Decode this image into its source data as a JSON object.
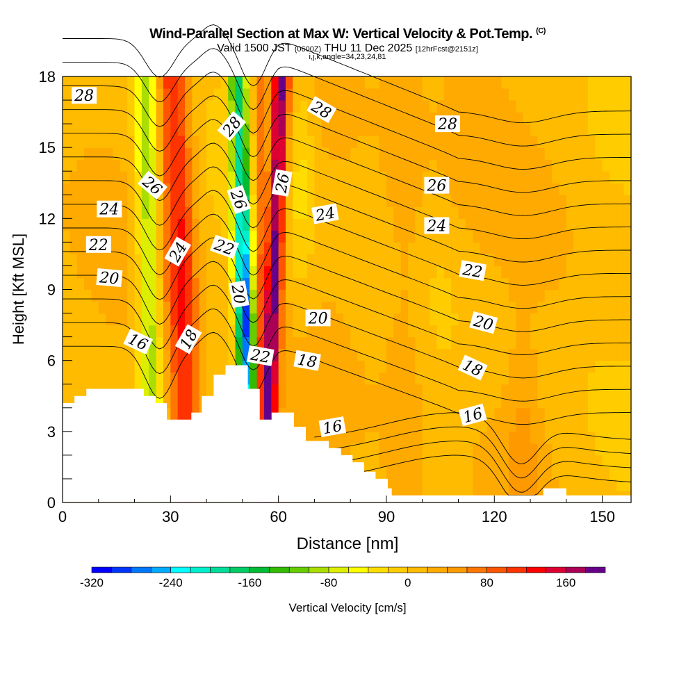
{
  "chart_data": {
    "type": "heatmap",
    "title": "Wind-Parallel Section at Max W: Vertical Velocity & Pot.Temp.",
    "title_mark": "(C)",
    "subtitle_main": "Valid 1500 JST",
    "subtitle_utc": "(0600Z)",
    "subtitle_date": "THU 11 Dec 2025",
    "subtitle_fcst": "[12hrFcst@2151z]",
    "subtitle2": "i,j,k,angle=34,23,24,81",
    "xlabel": "Distance [nm]",
    "ylabel": "Height [Kft MSL]",
    "xlim": [
      0,
      158
    ],
    "ylim": [
      0,
      18
    ],
    "xticks": [
      "0",
      "30",
      "60",
      "90",
      "120",
      "150"
    ],
    "yticks": [
      "0",
      "3",
      "6",
      "9",
      "12",
      "15",
      "18"
    ],
    "colorbar": {
      "label": "Vertical Velocity [cm/s]",
      "min": -320,
      "max": 200,
      "step": 20,
      "tick_labels": [
        "-320",
        "-240",
        "-160",
        "-80",
        "0",
        "80",
        "160"
      ],
      "colors": [
        "#0000ff",
        "#0033ff",
        "#0077ff",
        "#00aaff",
        "#00ffff",
        "#00eecc",
        "#00dd99",
        "#00cc66",
        "#00bb33",
        "#33bb00",
        "#66cc00",
        "#aadd00",
        "#ddee00",
        "#ffff00",
        "#ffdd00",
        "#ffcc00",
        "#ffbb00",
        "#ffaa00",
        "#ff9900",
        "#ff7700",
        "#ff5500",
        "#ff3300",
        "#ff0000",
        "#dd0033",
        "#aa0055",
        "#660088"
      ]
    },
    "theta_levels": [
      16,
      17,
      18,
      19,
      20,
      21,
      22,
      23,
      24,
      25,
      26,
      27,
      28,
      29
    ],
    "theta_labels": [
      {
        "text": "28",
        "x": 6,
        "z": 17.2,
        "rot": 0
      },
      {
        "text": "24",
        "x": 13,
        "z": 12.4,
        "rot": 0
      },
      {
        "text": "22",
        "x": 10,
        "z": 10.9,
        "rot": 0
      },
      {
        "text": "20",
        "x": 13,
        "z": 9.5,
        "rot": 5
      },
      {
        "text": "16",
        "x": 21,
        "z": 6.8,
        "rot": 25
      },
      {
        "text": "26",
        "x": 25,
        "z": 13.4,
        "rot": 40
      },
      {
        "text": "24",
        "x": 32,
        "z": 10.6,
        "rot": -60
      },
      {
        "text": "18",
        "x": 35,
        "z": 6.9,
        "rot": -60
      },
      {
        "text": "28",
        "x": 47,
        "z": 15.9,
        "rot": -50
      },
      {
        "text": "26",
        "x": 49,
        "z": 12.8,
        "rot": 70
      },
      {
        "text": "22",
        "x": 45,
        "z": 10.8,
        "rot": 20
      },
      {
        "text": "20",
        "x": 49,
        "z": 8.8,
        "rot": 80
      },
      {
        "text": "22",
        "x": 55,
        "z": 6.2,
        "rot": 10
      },
      {
        "text": "26",
        "x": 61,
        "z": 13.5,
        "rot": -80
      },
      {
        "text": "28",
        "x": 72,
        "z": 16.6,
        "rot": 30
      },
      {
        "text": "24",
        "x": 73,
        "z": 12.2,
        "rot": -10
      },
      {
        "text": "20",
        "x": 71,
        "z": 7.8,
        "rot": 0
      },
      {
        "text": "18",
        "x": 68,
        "z": 6.0,
        "rot": 10
      },
      {
        "text": "16",
        "x": 75,
        "z": 3.2,
        "rot": -10
      },
      {
        "text": "28",
        "x": 107,
        "z": 16.0,
        "rot": 0
      },
      {
        "text": "26",
        "x": 104,
        "z": 13.4,
        "rot": 0
      },
      {
        "text": "24",
        "x": 104,
        "z": 11.7,
        "rot": 0
      },
      {
        "text": "22",
        "x": 114,
        "z": 9.8,
        "rot": 10
      },
      {
        "text": "20",
        "x": 117,
        "z": 7.6,
        "rot": 15
      },
      {
        "text": "18",
        "x": 114,
        "z": 5.7,
        "rot": 25
      },
      {
        "text": "16",
        "x": 114,
        "z": 3.7,
        "rot": -15
      }
    ],
    "terrain": [
      [
        0,
        4.2
      ],
      [
        3.3,
        4.2
      ],
      [
        3.3,
        4.5
      ],
      [
        6.6,
        4.5
      ],
      [
        6.6,
        4.8
      ],
      [
        22.6,
        4.8
      ],
      [
        22.6,
        4.5
      ],
      [
        25.9,
        4.5
      ],
      [
        25.9,
        4.2
      ],
      [
        29,
        4.2
      ],
      [
        29,
        3.5
      ],
      [
        35.8,
        3.5
      ],
      [
        35.8,
        3.8
      ],
      [
        38.7,
        3.8
      ],
      [
        38.7,
        4.5
      ],
      [
        42,
        4.5
      ],
      [
        42,
        5.4
      ],
      [
        45.3,
        5.4
      ],
      [
        45.3,
        5.8
      ],
      [
        51.5,
        5.8
      ],
      [
        51.5,
        4.8
      ],
      [
        54.8,
        4.8
      ],
      [
        54.8,
        3.5
      ],
      [
        58.1,
        3.5
      ],
      [
        58.1,
        3.8
      ],
      [
        64.3,
        3.8
      ],
      [
        64.3,
        3.2
      ],
      [
        67.6,
        3.2
      ],
      [
        67.6,
        2.6
      ],
      [
        74,
        2.6
      ],
      [
        74,
        2.3
      ],
      [
        77.4,
        2.3
      ],
      [
        77.4,
        2.0
      ],
      [
        80.6,
        2.0
      ],
      [
        80.6,
        1.7
      ],
      [
        83.8,
        1.7
      ],
      [
        83.8,
        1.3
      ],
      [
        87,
        1.3
      ],
      [
        87,
        1.0
      ],
      [
        90.4,
        1.0
      ],
      [
        90.4,
        0.6
      ],
      [
        91.5,
        0.6
      ],
      [
        91.5,
        0.3
      ],
      [
        133.6,
        0.3
      ],
      [
        133.6,
        0.6
      ],
      [
        140,
        0.6
      ],
      [
        140,
        0.3
      ],
      [
        158,
        0.3
      ]
    ]
  }
}
